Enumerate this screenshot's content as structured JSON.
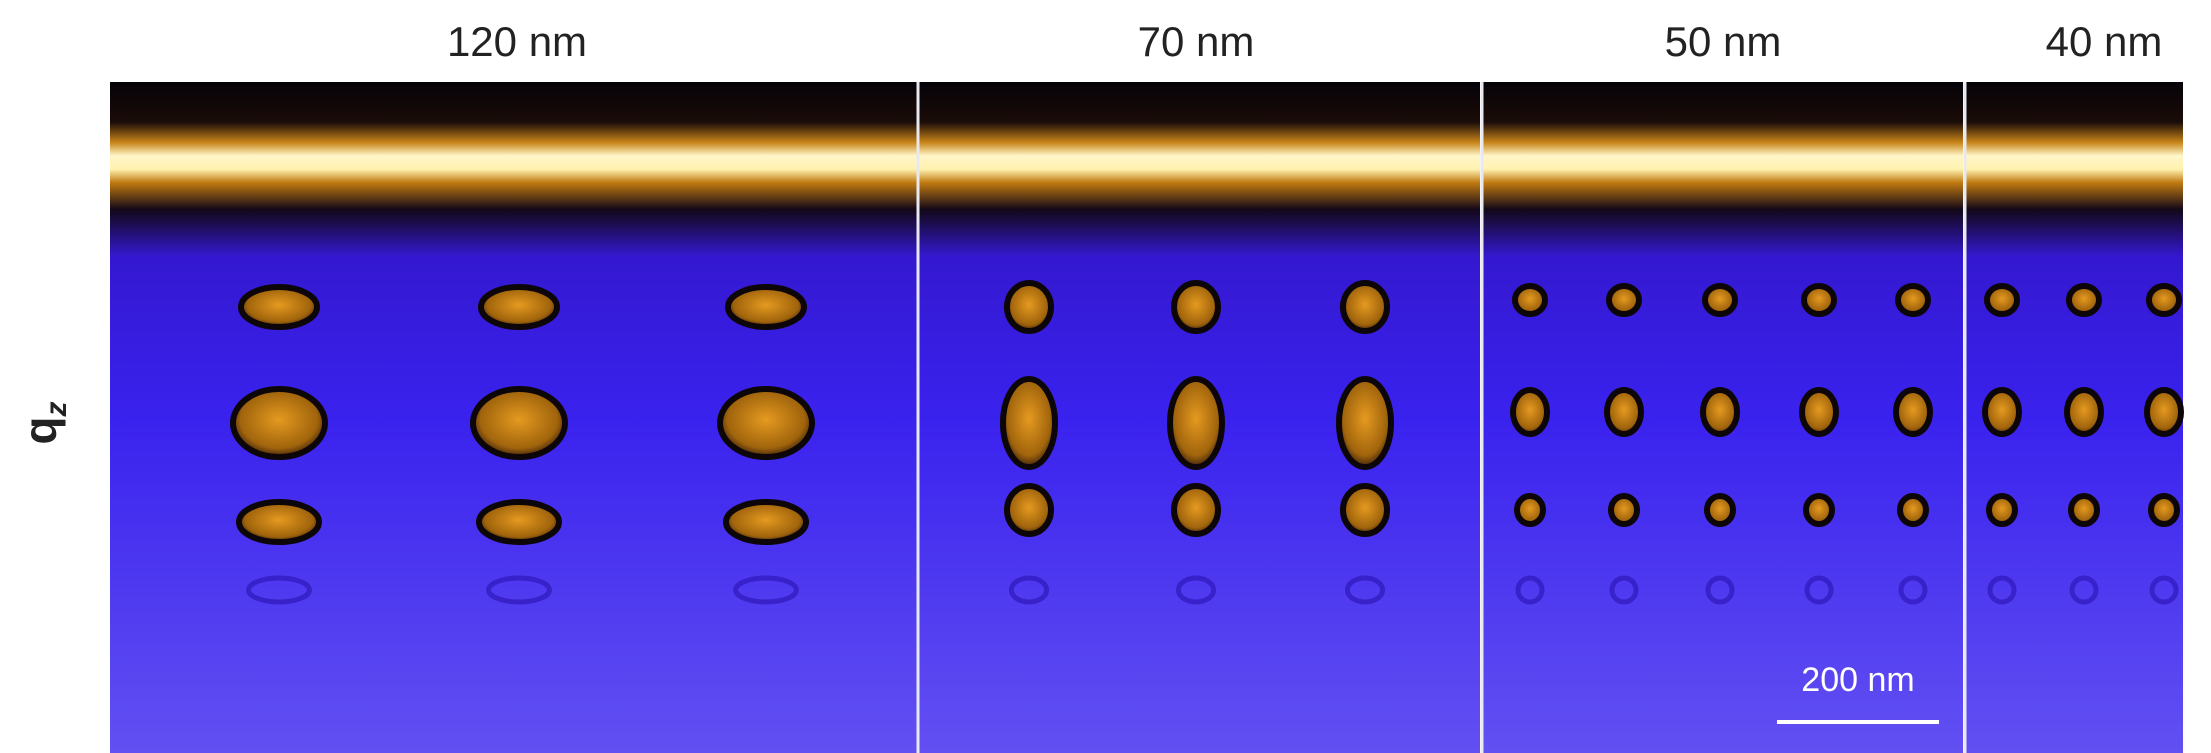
{
  "panels": [
    {
      "label": "120 nm"
    },
    {
      "label": "70 nm"
    },
    {
      "label": "50 nm"
    },
    {
      "label": "40 nm"
    }
  ],
  "axis_label": {
    "main": "q",
    "sub": "z"
  },
  "scale_bar": {
    "label": "200 nm"
  }
}
